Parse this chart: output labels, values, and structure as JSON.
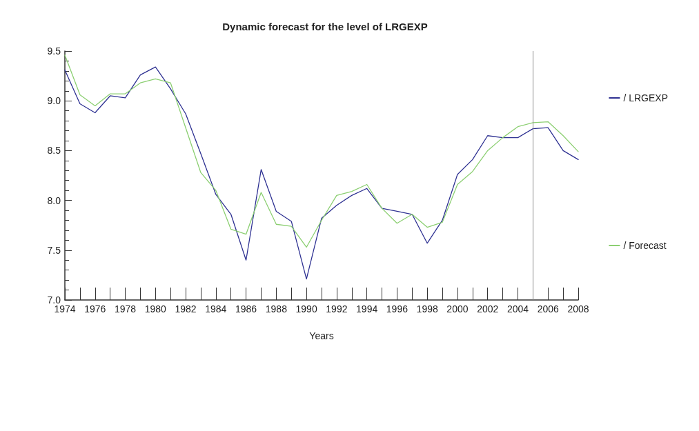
{
  "chart_data": {
    "type": "line",
    "title": "Dynamic forecast for the level of LRGEXP",
    "xlabel": "Years",
    "x": [
      1974,
      1975,
      1976,
      1977,
      1978,
      1979,
      1980,
      1981,
      1982,
      1983,
      1984,
      1985,
      1986,
      1987,
      1988,
      1989,
      1990,
      1991,
      1992,
      1993,
      1994,
      1995,
      1996,
      1997,
      1998,
      1999,
      2000,
      2001,
      2002,
      2003,
      2004,
      2005,
      2006,
      2007,
      2008
    ],
    "series": [
      {
        "name": "/ LRGEXP",
        "color": "#2e3192",
        "values": [
          9.31,
          8.97,
          8.88,
          9.05,
          9.03,
          9.26,
          9.34,
          9.12,
          8.87,
          8.47,
          8.06,
          7.86,
          7.4,
          8.31,
          7.89,
          7.79,
          7.21,
          7.82,
          7.95,
          8.05,
          8.12,
          7.92,
          7.89,
          7.86,
          7.57,
          7.8,
          8.26,
          8.41,
          8.65,
          8.63,
          8.63,
          8.72,
          8.73,
          8.5,
          8.41
        ]
      },
      {
        "name": "/ Forecast",
        "color": "#8ccf72",
        "values": [
          9.46,
          9.06,
          8.95,
          9.07,
          9.07,
          9.18,
          9.22,
          9.18,
          8.73,
          8.28,
          8.1,
          7.71,
          7.66,
          8.08,
          7.76,
          7.74,
          7.53,
          7.8,
          8.05,
          8.09,
          8.16,
          7.92,
          7.77,
          7.86,
          7.73,
          7.78,
          8.16,
          8.29,
          8.5,
          8.63,
          8.74,
          8.78,
          8.79,
          8.65,
          8.49
        ]
      }
    ],
    "xlim": [
      1974,
      2008
    ],
    "xticks": [
      1974,
      1976,
      1978,
      1980,
      1982,
      1984,
      1986,
      1988,
      1990,
      1992,
      1994,
      1996,
      1998,
      2000,
      2002,
      2004,
      2006,
      2008
    ],
    "ylim": [
      7,
      9.5
    ],
    "yticks": [
      {
        "value": 7,
        "label": "7.0"
      },
      7.5,
      {
        "value": 8,
        "label": "8.0"
      },
      8.5,
      {
        "value": 9,
        "label": "9.0"
      },
      9.5
    ],
    "ref_lines": [
      {
        "axis": "x",
        "value": 2005,
        "color": "#888888"
      }
    ],
    "grid": false,
    "legend": "right",
    "marker": "none",
    "line_style": "solid"
  }
}
